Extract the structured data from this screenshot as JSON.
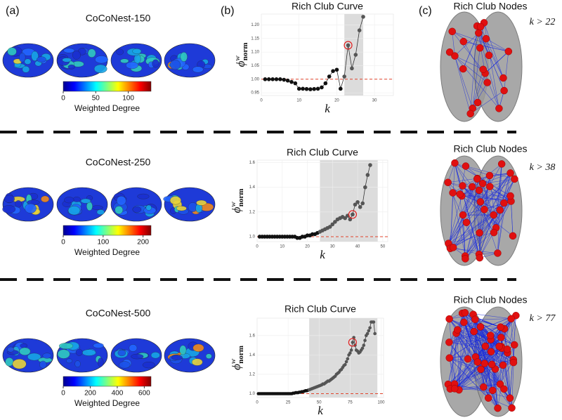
{
  "panel_labels": [
    "(a)",
    "(b)",
    "(c)"
  ],
  "rows": [
    {
      "name": "CoCoNest-150",
      "colorbar": {
        "label": "Weighted Degree",
        "lim": [
          0,
          135
        ],
        "ticks": [
          0,
          50,
          100
        ]
      },
      "nodes_title": "Rich Club Nodes",
      "threshold": "k > 22"
    },
    {
      "name": "CoCoNest-250",
      "colorbar": {
        "label": "Weighted Degree",
        "lim": [
          0,
          220
        ],
        "ticks": [
          0,
          100,
          200
        ]
      },
      "nodes_title": "Rich Club Nodes",
      "threshold": "k > 38"
    },
    {
      "name": "CoCoNest-500",
      "colorbar": {
        "label": "Weighted Degree",
        "lim": [
          0,
          650
        ],
        "ticks": [
          0,
          200,
          400,
          600
        ]
      },
      "nodes_title": "Rich Club Nodes",
      "threshold": "k > 77"
    }
  ],
  "chart_data": [
    {
      "type": "line",
      "title": "Rich Club Curve",
      "xlabel": "k",
      "ylabel": {
        "symbol": "ϕ",
        "sup": "w",
        "sub": "norm"
      },
      "x": [
        1,
        2,
        3,
        4,
        5,
        6,
        7,
        8,
        9,
        10,
        11,
        12,
        13,
        14,
        15,
        16,
        17,
        18,
        19,
        20,
        21,
        22,
        23,
        24,
        25,
        26,
        27
      ],
      "values": [
        1.0,
        1.0,
        1.0,
        1.0,
        1.0,
        0.998,
        0.995,
        0.99,
        0.985,
        0.965,
        0.965,
        0.964,
        0.963,
        0.964,
        0.965,
        0.97,
        0.985,
        1.01,
        1.03,
        1.035,
        0.965,
        1.01,
        1.125,
        1.04,
        1.09,
        1.18,
        1.23
      ],
      "color": "#111111",
      "shade_color": "#555555",
      "xlim": [
        0,
        35
      ],
      "xticks": [
        0,
        10,
        20,
        30
      ],
      "ylim": [
        0.94,
        1.24
      ],
      "yticks": [
        {
          "value": 0.95,
          "label": "0.95"
        },
        {
          "value": 1.0,
          "label": "1.00"
        },
        {
          "value": 1.05,
          "label": "1.05"
        },
        {
          "value": 1.1,
          "label": "1.10"
        },
        {
          "value": 1.15,
          "label": "1.15"
        },
        {
          "value": 1.2,
          "label": "1.20"
        }
      ],
      "shade": [
        22,
        27
      ],
      "highlight_x": 23,
      "ref_line": 1.0,
      "grid": true
    },
    {
      "type": "line",
      "title": "Rich Club Curve",
      "xlabel": "k",
      "ylabel": {
        "symbol": "ϕ",
        "sup": "w",
        "sub": "norm"
      },
      "x": [
        1,
        2,
        3,
        4,
        5,
        6,
        7,
        8,
        9,
        10,
        11,
        12,
        13,
        14,
        15,
        16,
        17,
        18,
        19,
        20,
        21,
        22,
        23,
        24,
        25,
        26,
        27,
        28,
        29,
        30,
        31,
        32,
        33,
        34,
        35,
        36,
        37,
        38,
        39,
        40,
        41,
        42,
        43,
        44,
        45
      ],
      "values": [
        1.0,
        1.0,
        1.0,
        1.0,
        1.0,
        1.0,
        1.0,
        1.0,
        1.0,
        1.0,
        1.0,
        1.0,
        1.0,
        1.0,
        1.0,
        0.99,
        0.99,
        1.0,
        1.0,
        1.01,
        1.01,
        1.02,
        1.02,
        1.03,
        1.04,
        1.05,
        1.06,
        1.07,
        1.08,
        1.1,
        1.12,
        1.14,
        1.15,
        1.16,
        1.15,
        1.17,
        1.14,
        1.18,
        1.26,
        1.28,
        1.24,
        1.27,
        1.4,
        1.5,
        1.58
      ],
      "color": "#111111",
      "shade_color": "#555555",
      "xlim": [
        0,
        52
      ],
      "xticks": [
        0,
        10,
        20,
        30,
        40,
        50
      ],
      "ylim": [
        0.96,
        1.62
      ],
      "yticks": [
        {
          "value": 1.0,
          "label": "1.0"
        },
        1.2,
        1.4,
        1.6
      ],
      "shade": [
        25,
        48
      ],
      "highlight_x": 38,
      "ref_line": 1.0,
      "grid": true
    },
    {
      "type": "line",
      "title": "Rich Club Curve",
      "xlabel": "k",
      "ylabel": {
        "symbol": "ϕ",
        "sup": "w",
        "sub": "norm"
      },
      "x": [
        1,
        2,
        3,
        4,
        5,
        6,
        7,
        8,
        9,
        10,
        11,
        12,
        13,
        14,
        15,
        16,
        17,
        18,
        19,
        20,
        21,
        22,
        23,
        24,
        25,
        26,
        27,
        28,
        29,
        30,
        31,
        32,
        33,
        34,
        35,
        36,
        37,
        38,
        39,
        40,
        41,
        42,
        43,
        44,
        45,
        46,
        47,
        48,
        49,
        50,
        51,
        52,
        53,
        54,
        55,
        56,
        57,
        58,
        59,
        60,
        61,
        62,
        63,
        64,
        65,
        66,
        67,
        68,
        69,
        70,
        71,
        72,
        73,
        74,
        75,
        76,
        77,
        78,
        79,
        80,
        81,
        82,
        83,
        84,
        85,
        86,
        87,
        88,
        89,
        90,
        91,
        92,
        93,
        94,
        95
      ],
      "values": [
        1.0,
        1.0,
        1.0,
        1.0,
        1.0,
        1.0,
        1.0,
        1.0,
        1.0,
        1.0,
        1.0,
        1.0,
        1.0,
        1.0,
        1.0,
        1.0,
        1.0,
        1.0,
        1.0,
        1.0,
        1.0,
        1.0,
        1.0,
        1.0,
        1.0,
        1.0,
        1.0,
        1.0,
        1.005,
        1.005,
        1.01,
        1.01,
        1.01,
        1.015,
        1.015,
        1.02,
        1.02,
        1.025,
        1.03,
        1.03,
        1.035,
        1.04,
        1.045,
        1.05,
        1.055,
        1.06,
        1.065,
        1.07,
        1.075,
        1.08,
        1.085,
        1.09,
        1.1,
        1.1,
        1.11,
        1.12,
        1.13,
        1.13,
        1.14,
        1.15,
        1.16,
        1.17,
        1.18,
        1.2,
        1.21,
        1.22,
        1.24,
        1.25,
        1.27,
        1.29,
        1.3,
        1.33,
        1.36,
        1.4,
        1.42,
        1.45,
        1.53,
        1.58,
        1.5,
        1.45,
        1.44,
        1.42,
        1.43,
        1.45,
        1.47,
        1.5,
        1.55,
        1.6,
        1.62,
        1.65,
        1.68,
        1.74,
        1.74,
        1.74,
        1.62
      ],
      "color": "#111111",
      "shade_color": "#555555",
      "xlim": [
        0,
        102
      ],
      "xticks": [
        0,
        25,
        50,
        75,
        100
      ],
      "ylim": [
        0.96,
        1.78
      ],
      "yticks": [
        {
          "value": 1.0,
          "label": "1.0"
        },
        1.2,
        1.4,
        1.6
      ],
      "shade": [
        42,
        97
      ],
      "highlight_x": 77,
      "ref_line": 1.0,
      "grid": true
    }
  ]
}
